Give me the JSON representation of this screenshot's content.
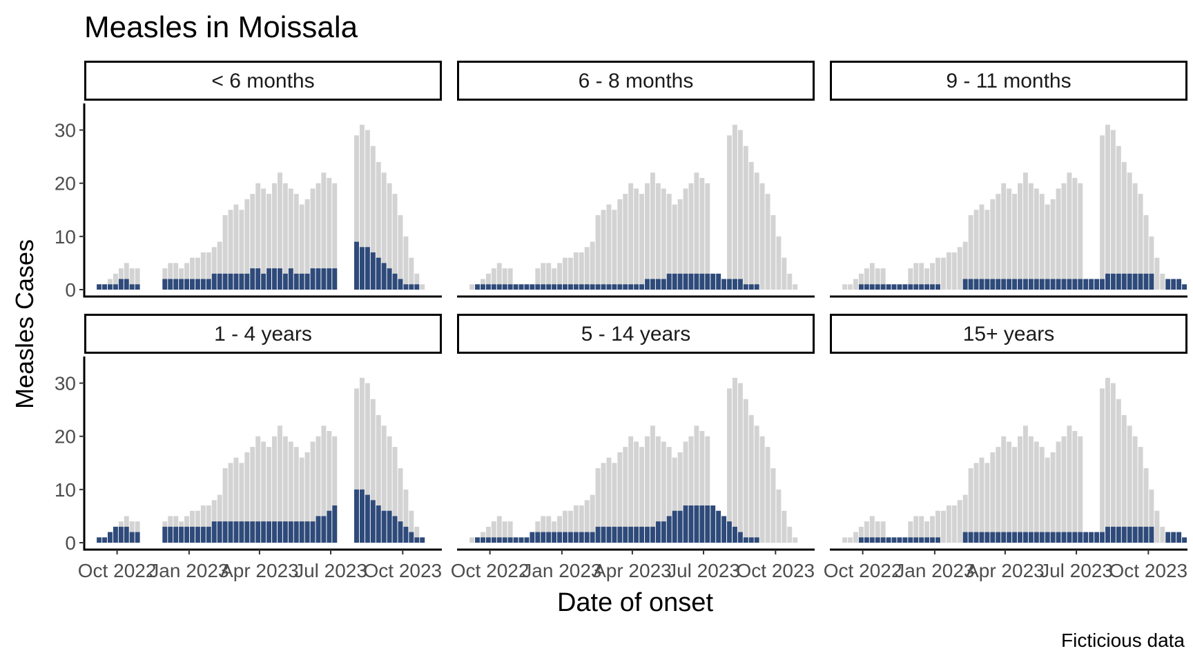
{
  "chart_data": {
    "type": "bar",
    "title": "Measles in Moissala",
    "xlabel": "Date of onset",
    "ylabel": "Measles Cases",
    "caption": "Ficticious data",
    "x_range": [
      "2022-08-20",
      "2023-11-20"
    ],
    "x_ticks": [
      {
        "date": "2022-10-01",
        "label": "Oct 2022"
      },
      {
        "date": "2023-01-01",
        "label": "Jan 2023"
      },
      {
        "date": "2023-04-01",
        "label": "Apr 2023"
      },
      {
        "date": "2023-07-01",
        "label": "Jul 2023"
      },
      {
        "date": "2023-10-01",
        "label": "Oct 2023"
      }
    ],
    "ylim": [
      0,
      35
    ],
    "y_ticks": [
      0,
      10,
      20,
      30
    ],
    "grid": false,
    "legend": "none",
    "colors": {
      "background_bars": "#d3d3d3",
      "facet_bars": "#2e4a7a",
      "strip_border": "#000000"
    },
    "background_series": {
      "note": "weekly approximation of total cases (all age groups), drawn in grey in every panel",
      "start": "2022-09-05",
      "week_values": [
        1,
        1,
        2,
        3,
        4,
        5,
        4,
        4,
        0,
        0,
        0,
        0,
        4,
        5,
        5,
        4,
        5,
        6,
        6,
        7,
        7,
        8,
        9,
        14,
        15,
        16,
        15,
        17,
        18,
        20,
        19,
        18,
        20,
        22,
        20,
        19,
        18,
        16,
        17,
        19,
        20,
        22,
        21,
        20,
        0,
        0,
        0,
        29,
        31,
        30,
        27,
        24,
        22,
        20,
        18,
        14,
        10,
        6,
        3,
        1
      ]
    },
    "panels": [
      {
        "label": "< 6 months",
        "start": "2022-09-05",
        "week_values": [
          1,
          1,
          1,
          1,
          2,
          2,
          1,
          1,
          0,
          0,
          0,
          0,
          2,
          2,
          2,
          2,
          2,
          2,
          2,
          2,
          2,
          3,
          3,
          3,
          3,
          3,
          3,
          3,
          4,
          4,
          3,
          4,
          4,
          4,
          3,
          4,
          3,
          3,
          3,
          4,
          4,
          4,
          4,
          4,
          0,
          0,
          0,
          9,
          8,
          8,
          7,
          6,
          5,
          4,
          3,
          2,
          1,
          1,
          1,
          0
        ]
      },
      {
        "label": "6 - 8 months",
        "start": "2022-09-05",
        "week_values": [
          0,
          1,
          1,
          1,
          1,
          1,
          1,
          1,
          1,
          1,
          1,
          1,
          1,
          1,
          1,
          1,
          1,
          1,
          1,
          1,
          1,
          1,
          1,
          1,
          1,
          1,
          1,
          1,
          1,
          1,
          1,
          1,
          2,
          2,
          2,
          2,
          3,
          3,
          3,
          3,
          3,
          3,
          3,
          3,
          3,
          3,
          2,
          2,
          2,
          2,
          1,
          1,
          1,
          0
        ]
      },
      {
        "label": "9 - 11 months",
        "start": "2022-09-05",
        "week_values": [
          0,
          0,
          0,
          1,
          1,
          1,
          1,
          1,
          1,
          1,
          1,
          1,
          1,
          1,
          1,
          1,
          1,
          1,
          0,
          0,
          0,
          0,
          2,
          2,
          2,
          2,
          2,
          2,
          2,
          2,
          2,
          2,
          2,
          2,
          2,
          2,
          2,
          2,
          2,
          2,
          2,
          2,
          2,
          2,
          2,
          2,
          2,
          2,
          3,
          3,
          3,
          3,
          3,
          3,
          3,
          3,
          3,
          0,
          0,
          2,
          2,
          2,
          1
        ]
      },
      {
        "label": "1 - 4 years",
        "start": "2022-09-05",
        "week_values": [
          1,
          1,
          2,
          3,
          3,
          3,
          2,
          2,
          0,
          0,
          0,
          0,
          3,
          3,
          3,
          3,
          3,
          3,
          3,
          3,
          3,
          4,
          4,
          4,
          4,
          4,
          4,
          4,
          4,
          4,
          4,
          4,
          4,
          4,
          4,
          4,
          4,
          4,
          4,
          4,
          5,
          5,
          6,
          7,
          0,
          0,
          0,
          10,
          10,
          9,
          8,
          7,
          6,
          6,
          5,
          4,
          3,
          2,
          1,
          1
        ]
      },
      {
        "label": "5 - 14 years",
        "start": "2022-09-05",
        "week_values": [
          0,
          1,
          1,
          1,
          1,
          1,
          1,
          1,
          1,
          1,
          1,
          2,
          2,
          2,
          2,
          2,
          2,
          2,
          2,
          2,
          2,
          2,
          2,
          3,
          3,
          3,
          3,
          3,
          3,
          3,
          3,
          3,
          3,
          3,
          4,
          4,
          5,
          6,
          6,
          7,
          7,
          7,
          7,
          7,
          7,
          6,
          5,
          4,
          3,
          2,
          1,
          1,
          1,
          0
        ]
      },
      {
        "label": "15+ years",
        "start": "2022-09-05",
        "week_values": [
          0,
          0,
          0,
          1,
          1,
          1,
          1,
          1,
          1,
          1,
          1,
          1,
          1,
          1,
          1,
          1,
          1,
          1,
          0,
          0,
          0,
          0,
          2,
          2,
          2,
          2,
          2,
          2,
          2,
          2,
          2,
          2,
          2,
          2,
          2,
          2,
          2,
          2,
          2,
          2,
          2,
          2,
          2,
          2,
          2,
          2,
          2,
          2,
          3,
          3,
          3,
          3,
          3,
          3,
          3,
          3,
          3,
          0,
          0,
          2,
          2,
          2,
          1
        ]
      }
    ]
  }
}
